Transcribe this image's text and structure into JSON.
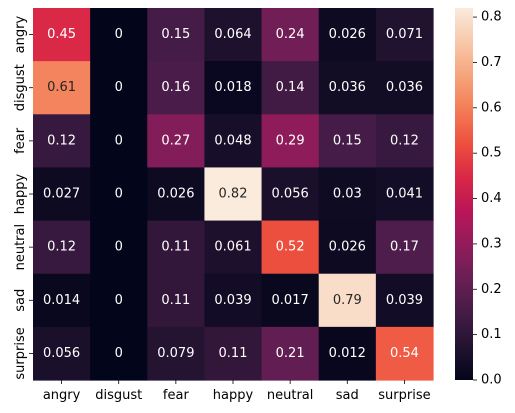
{
  "chart_data": {
    "type": "heatmap",
    "x_categories": [
      "angry",
      "disgust",
      "fear",
      "happy",
      "neutral",
      "sad",
      "surprise"
    ],
    "y_categories": [
      "angry",
      "disgust",
      "fear",
      "happy",
      "neutral",
      "sad",
      "surprise"
    ],
    "values": [
      [
        0.45,
        0,
        0.15,
        0.064,
        0.24,
        0.026,
        0.071
      ],
      [
        0.61,
        0,
        0.16,
        0.018,
        0.14,
        0.036,
        0.036
      ],
      [
        0.12,
        0,
        0.27,
        0.048,
        0.29,
        0.15,
        0.12
      ],
      [
        0.027,
        0,
        0.026,
        0.82,
        0.056,
        0.03,
        0.041
      ],
      [
        0.12,
        0,
        0.11,
        0.061,
        0.52,
        0.026,
        0.17
      ],
      [
        0.014,
        0,
        0.11,
        0.039,
        0.017,
        0.79,
        0.039
      ],
      [
        0.056,
        0,
        0.079,
        0.11,
        0.21,
        0.012,
        0.54
      ]
    ],
    "labels": [
      [
        "0.45",
        "0",
        "0.15",
        "0.064",
        "0.24",
        "0.026",
        "0.071"
      ],
      [
        "0.61",
        "0",
        "0.16",
        "0.018",
        "0.14",
        "0.036",
        "0.036"
      ],
      [
        "0.12",
        "0",
        "0.27",
        "0.048",
        "0.29",
        "0.15",
        "0.12"
      ],
      [
        "0.027",
        "0",
        "0.026",
        "0.82",
        "0.056",
        "0.03",
        "0.041"
      ],
      [
        "0.12",
        "0",
        "0.11",
        "0.061",
        "0.52",
        "0.026",
        "0.17"
      ],
      [
        "0.014",
        "0",
        "0.11",
        "0.039",
        "0.017",
        "0.79",
        "0.039"
      ],
      [
        "0.056",
        "0",
        "0.079",
        "0.11",
        "0.21",
        "0.012",
        "0.54"
      ]
    ],
    "vmin": 0,
    "vmax": 0.82,
    "colormap": "rocket",
    "colormap_stops": [
      "#03051A",
      "#221331",
      "#451C47",
      "#691F55",
      "#921C5B",
      "#B91657",
      "#D92847",
      "#ED503E",
      "#F47D57",
      "#F6A47B",
      "#F7C9AA",
      "#FAEBDD"
    ],
    "colorbar_ticks": [
      "0.0",
      "0.1",
      "0.2",
      "0.3",
      "0.4",
      "0.5",
      "0.6",
      "0.7",
      "0.8"
    ],
    "grid": false,
    "legend": "colorbar-right"
  }
}
